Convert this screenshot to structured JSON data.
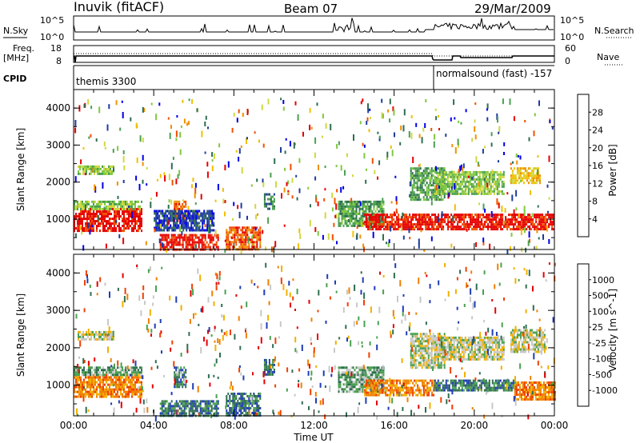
{
  "header": {
    "station": "Inuvik (fitACF)",
    "beam": "Beam 07",
    "date": "29/Mar/2009"
  },
  "noise_panel": {
    "left_label": "N.Sky",
    "right_label": "N.Search",
    "left_ticks": [
      "10^5",
      "10^0"
    ],
    "right_ticks": [
      "10^5",
      "10^0"
    ]
  },
  "freq_panel": {
    "left_label_1": "Freq.",
    "left_label_2": "[MHz]",
    "right_label": "Nave",
    "left_ticks": [
      "18",
      "8"
    ],
    "right_ticks": [
      "60",
      "0"
    ]
  },
  "cpid_panel": {
    "label": "CPID",
    "segments": [
      {
        "start_hour": 0,
        "end_hour": 18,
        "text": "themis 3300"
      },
      {
        "start_hour": 18,
        "end_hour": 24,
        "text": "normalsound (fast) -157"
      }
    ]
  },
  "chart_data": [
    {
      "type": "heatmap",
      "name": "power",
      "ylabel": "Slant Range [km]",
      "xlabel": "",
      "x_range_hours": [
        0,
        24
      ],
      "ylim": [
        180,
        4500
      ],
      "y_ticks": [
        "1000",
        "2000",
        "3000",
        "4000"
      ],
      "colorbar_label": "Power [dB]",
      "colorbar_ticks": [
        "28",
        "24",
        "20",
        "16",
        "12",
        "8",
        "4"
      ],
      "colorbar_colors": [
        "#0000e6",
        "#1e3c9e",
        "#2e6e50",
        "#4aa050",
        "#80c840",
        "#d0d840",
        "#f0c000",
        "#f09000",
        "#f05000",
        "#e60000"
      ],
      "regions": [
        {
          "x0": 0.0,
          "x1": 3.4,
          "y0": 700,
          "y1": 1300,
          "level": 9
        },
        {
          "x0": 0.0,
          "x1": 3.4,
          "y0": 1300,
          "y1": 1500,
          "level": 4
        },
        {
          "x0": 0.2,
          "x1": 2.0,
          "y0": 2200,
          "y1": 2450,
          "level": 4
        },
        {
          "x0": 4.3,
          "x1": 7.2,
          "y0": 200,
          "y1": 600,
          "level": 9
        },
        {
          "x0": 5.0,
          "x1": 5.6,
          "y0": 950,
          "y1": 1500,
          "level": 8
        },
        {
          "x0": 4.0,
          "x1": 7.0,
          "y0": 700,
          "y1": 1250,
          "level": 1
        },
        {
          "x0": 7.6,
          "x1": 9.3,
          "y0": 200,
          "y1": 800,
          "level": 8
        },
        {
          "x0": 9.5,
          "x1": 10.0,
          "y0": 1300,
          "y1": 1700,
          "level": 2
        },
        {
          "x0": 13.2,
          "x1": 15.5,
          "y0": 800,
          "y1": 1500,
          "level": 3
        },
        {
          "x0": 14.5,
          "x1": 24.0,
          "y0": 750,
          "y1": 1150,
          "level": 9
        },
        {
          "x0": 16.8,
          "x1": 18.5,
          "y0": 1500,
          "y1": 2400,
          "level": 3
        },
        {
          "x0": 18.0,
          "x1": 21.5,
          "y0": 1700,
          "y1": 2300,
          "level": 4
        },
        {
          "x0": 21.8,
          "x1": 23.3,
          "y0": 2000,
          "y1": 2400,
          "level": 6
        }
      ]
    },
    {
      "type": "heatmap",
      "name": "velocity",
      "ylabel": "Slant Range [km]",
      "xlabel": "Time UT",
      "x_range_hours": [
        0,
        24
      ],
      "x_ticks": [
        "00:00",
        "04:00",
        "08:00",
        "12:00",
        "16:00",
        "20:00",
        "00:00"
      ],
      "ylim": [
        180,
        4500
      ],
      "y_ticks": [
        "1000",
        "2000",
        "3000",
        "4000"
      ],
      "colorbar_label": "Velocity [m s^-1]",
      "colorbar_ticks": [
        "1000",
        "500",
        "100",
        "25",
        "-25",
        "-100",
        "-500",
        "-1000"
      ],
      "colorbar_colors": [
        "#1e3cb4",
        "#2e6e50",
        "#4aa050",
        "#c8c8c8",
        "#f0b000",
        "#f08000",
        "#f04000",
        "#e60000"
      ],
      "regions": [
        {
          "x0": 0.0,
          "x1": 3.4,
          "y0": 700,
          "y1": 1300,
          "level": 5
        },
        {
          "x0": 0.0,
          "x1": 3.4,
          "y0": 1300,
          "y1": 1500,
          "level": 2
        },
        {
          "x0": 0.2,
          "x1": 2.0,
          "y0": 2200,
          "y1": 2450,
          "level": 3
        },
        {
          "x0": 4.3,
          "x1": 7.2,
          "y0": 200,
          "y1": 600,
          "level": 1
        },
        {
          "x0": 5.0,
          "x1": 5.6,
          "y0": 950,
          "y1": 1500,
          "level": 1
        },
        {
          "x0": 7.6,
          "x1": 9.3,
          "y0": 200,
          "y1": 800,
          "level": 1
        },
        {
          "x0": 9.5,
          "x1": 10.0,
          "y0": 1300,
          "y1": 1700,
          "level": 1
        },
        {
          "x0": 13.2,
          "x1": 15.5,
          "y0": 800,
          "y1": 1500,
          "level": 2
        },
        {
          "x0": 14.5,
          "x1": 18.0,
          "y0": 750,
          "y1": 1150,
          "level": 5
        },
        {
          "x0": 18.0,
          "x1": 22.0,
          "y0": 850,
          "y1": 1150,
          "level": 1
        },
        {
          "x0": 22.0,
          "x1": 24.0,
          "y0": 650,
          "y1": 1100,
          "level": 5
        },
        {
          "x0": 16.8,
          "x1": 18.5,
          "y0": 1500,
          "y1": 2400,
          "level": 3
        },
        {
          "x0": 18.0,
          "x1": 21.5,
          "y0": 1700,
          "y1": 2300,
          "level": 3
        },
        {
          "x0": 21.8,
          "x1": 23.5,
          "y0": 1900,
          "y1": 2500,
          "level": 3
        }
      ]
    }
  ]
}
